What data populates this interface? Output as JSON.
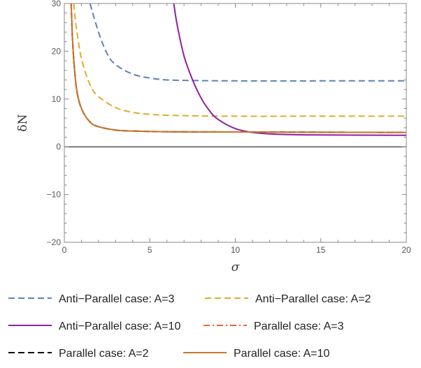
{
  "chart_data": {
    "type": "line",
    "xlabel": "σ",
    "ylabel": "δN",
    "xlim": [
      0,
      20
    ],
    "ylim": [
      -20,
      30
    ],
    "x_ticks": [
      0,
      5,
      10,
      15,
      20
    ],
    "y_ticks": [
      -20,
      -10,
      0,
      10,
      20,
      30
    ],
    "x_tick_labels": [
      "0",
      "5",
      "10",
      "15",
      "20"
    ],
    "y_tick_labels": [
      "−20",
      "−10",
      "0",
      "10",
      "20",
      "30"
    ],
    "grid": false,
    "legend_position": "bottom",
    "series": [
      {
        "name": "Anti−Parallel case: A=3",
        "color": "#5E81B5",
        "dash": "dashed",
        "x": [
          1.5,
          2,
          2.5,
          3,
          4,
          5,
          6,
          8,
          10,
          15,
          20
        ],
        "y": [
          30,
          24,
          19.5,
          17.2,
          15.2,
          14.4,
          14.0,
          13.85,
          13.8,
          13.8,
          13.8
        ]
      },
      {
        "name": "Anti−Parallel case: A=2",
        "color": "#E0AC2A",
        "dash": "dashed",
        "x": [
          0.55,
          0.7,
          1,
          1.5,
          2,
          3,
          4,
          5,
          6,
          8,
          10,
          15,
          20
        ],
        "y": [
          30,
          25,
          18.5,
          13.0,
          10.5,
          8.2,
          7.2,
          6.8,
          6.6,
          6.45,
          6.4,
          6.4,
          6.4
        ]
      },
      {
        "name": "Anti−Parallel case: A=10",
        "color": "#8F1FA0",
        "dash": "solid",
        "x": [
          6.4,
          6.6,
          7,
          7.5,
          8,
          8.5,
          9,
          10,
          11,
          12,
          14,
          17,
          20
        ],
        "y": [
          30,
          25.5,
          19,
          14,
          10.2,
          7.5,
          5.7,
          3.8,
          3.0,
          2.7,
          2.5,
          2.45,
          2.4
        ]
      },
      {
        "name": "Parallel case: A=3",
        "color": "#EB6235",
        "dash": "dashdot",
        "x": [
          0.4,
          0.5,
          0.7,
          1,
          1.5,
          2,
          3,
          4,
          6,
          10,
          15,
          20
        ],
        "y": [
          30,
          21,
          12.5,
          8.0,
          5.2,
          4.2,
          3.5,
          3.3,
          3.15,
          3.1,
          3.05,
          3.0
        ]
      },
      {
        "name": "Parallel case: A=2",
        "color": "#000000",
        "dash": "dashed",
        "x": [
          0.4,
          0.5,
          0.7,
          1,
          1.5,
          2,
          3,
          4,
          6,
          10,
          15,
          20
        ],
        "y": [
          30,
          21,
          12.5,
          8.0,
          5.2,
          4.2,
          3.5,
          3.3,
          3.15,
          3.1,
          3.05,
          3.0
        ]
      },
      {
        "name": "Parallel case: A=10",
        "color": "#C8762B",
        "dash": "solid",
        "x": [
          0.4,
          0.5,
          0.7,
          1,
          1.5,
          2,
          3,
          4,
          6,
          10,
          15,
          20
        ],
        "y": [
          30,
          21,
          12.5,
          8.0,
          5.2,
          4.2,
          3.5,
          3.3,
          3.15,
          3.1,
          3.05,
          3.0
        ]
      }
    ],
    "reference_line": {
      "y": 0,
      "color": "#000000"
    }
  }
}
